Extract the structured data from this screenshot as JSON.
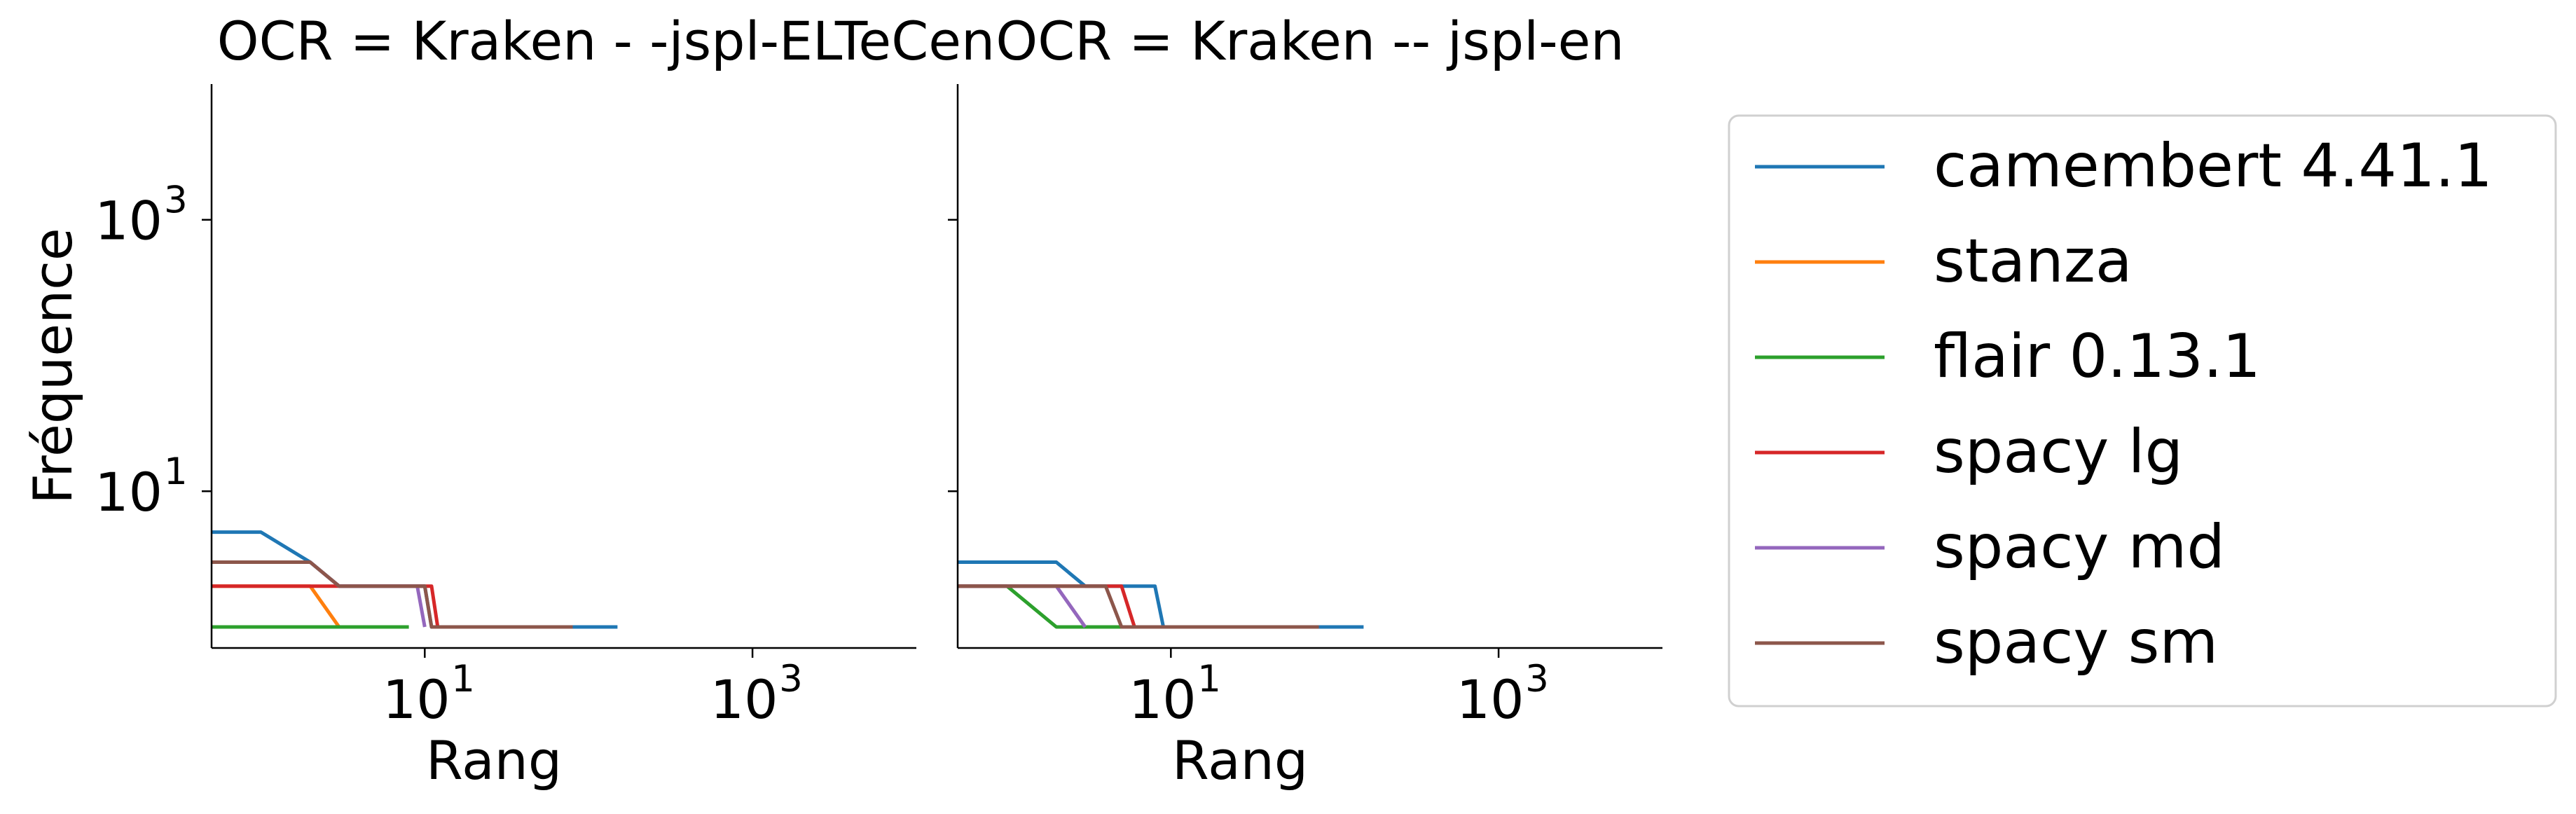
{
  "chart_data": {
    "type": "line",
    "ylabel": "Fréquence",
    "xscale": "log",
    "yscale": "log",
    "xlim": [
      0.5,
      10000
    ],
    "ylim": [
      0.7,
      10000
    ],
    "xticks": [
      10,
      1000
    ],
    "yticks": [
      10,
      1000
    ],
    "tick_labels": {
      "ten_base": "10",
      "exp_1": "1",
      "exp_3": "3"
    },
    "legend": {
      "placement": "right",
      "framed": true
    },
    "series_styles": [
      {
        "name": "camembert 4.41.1",
        "color": "#1f77b4"
      },
      {
        "name": "stanza",
        "color": "#ff7f0e"
      },
      {
        "name": "flair 0.13.1",
        "color": "#2ca02c"
      },
      {
        "name": "spacy lg",
        "color": "#d62728"
      },
      {
        "name": "spacy md",
        "color": "#9467bd"
      },
      {
        "name": "spacy sm",
        "color": "#8c564b"
      }
    ],
    "panels": [
      {
        "title": "OCR = Kraken - -jspl-ELTeCen",
        "xlabel": "Rang",
        "series": [
          {
            "name": "camembert 4.41.1",
            "x": [
              0.5,
              1,
              2,
              3,
              4,
              5,
              6,
              7,
              8,
              9,
              10,
              11,
              150
            ],
            "y": [
              5,
              5,
              3,
              2,
              2,
              2,
              2,
              2,
              2,
              2,
              2,
              1,
              1
            ]
          },
          {
            "name": "stanza",
            "x": [
              0.5,
              1,
              2,
              3
            ],
            "y": [
              2,
              2,
              2,
              1
            ]
          },
          {
            "name": "flair 0.13.1",
            "x": [
              0.5,
              8
            ],
            "y": [
              1,
              1
            ]
          },
          {
            "name": "spacy lg",
            "x": [
              0.5,
              1,
              2,
              3,
              4,
              5,
              6,
              7,
              8,
              9,
              10,
              11,
              12
            ],
            "y": [
              2,
              2,
              2,
              2,
              2,
              2,
              2,
              2,
              2,
              2,
              2,
              2,
              1
            ]
          },
          {
            "name": "spacy md",
            "x": [
              0.5,
              2,
              3,
              4,
              5,
              6,
              7,
              8,
              9,
              10
            ],
            "y": [
              3,
              3,
              2,
              2,
              2,
              2,
              2,
              2,
              2,
              1
            ]
          },
          {
            "name": "spacy sm",
            "x": [
              0.5,
              1,
              2,
              3,
              4,
              5,
              6,
              7,
              8,
              9,
              10,
              11,
              80
            ],
            "y": [
              3,
              3,
              3,
              2,
              2,
              2,
              2,
              2,
              2,
              2,
              2,
              1,
              1
            ]
          }
        ]
      },
      {
        "title": "OCR = Kraken -- jspl-en",
        "xlabel": "Rang",
        "series": [
          {
            "name": "camembert 4.41.1",
            "x": [
              0.5,
              2,
              3,
              4,
              5,
              6,
              7,
              8,
              9,
              150
            ],
            "y": [
              3,
              3,
              2,
              2,
              2,
              2,
              2,
              2,
              1,
              1
            ]
          },
          {
            "name": "stanza",
            "x": [
              0.5,
              1
            ],
            "y": [
              2,
              2
            ]
          },
          {
            "name": "flair 0.13.1",
            "x": [
              0.5,
              1,
              2,
              5
            ],
            "y": [
              2,
              2,
              1,
              1
            ]
          },
          {
            "name": "spacy lg",
            "x": [
              0.5,
              1,
              2,
              3,
              4,
              5,
              6
            ],
            "y": [
              2,
              2,
              2,
              2,
              2,
              2,
              1
            ]
          },
          {
            "name": "spacy md",
            "x": [
              0.5,
              1,
              2,
              3
            ],
            "y": [
              2,
              2,
              2,
              1
            ]
          },
          {
            "name": "spacy sm",
            "x": [
              0.5,
              1,
              2,
              3,
              4,
              5,
              80
            ],
            "y": [
              2,
              2,
              2,
              2,
              2,
              1,
              1
            ]
          }
        ]
      }
    ]
  }
}
